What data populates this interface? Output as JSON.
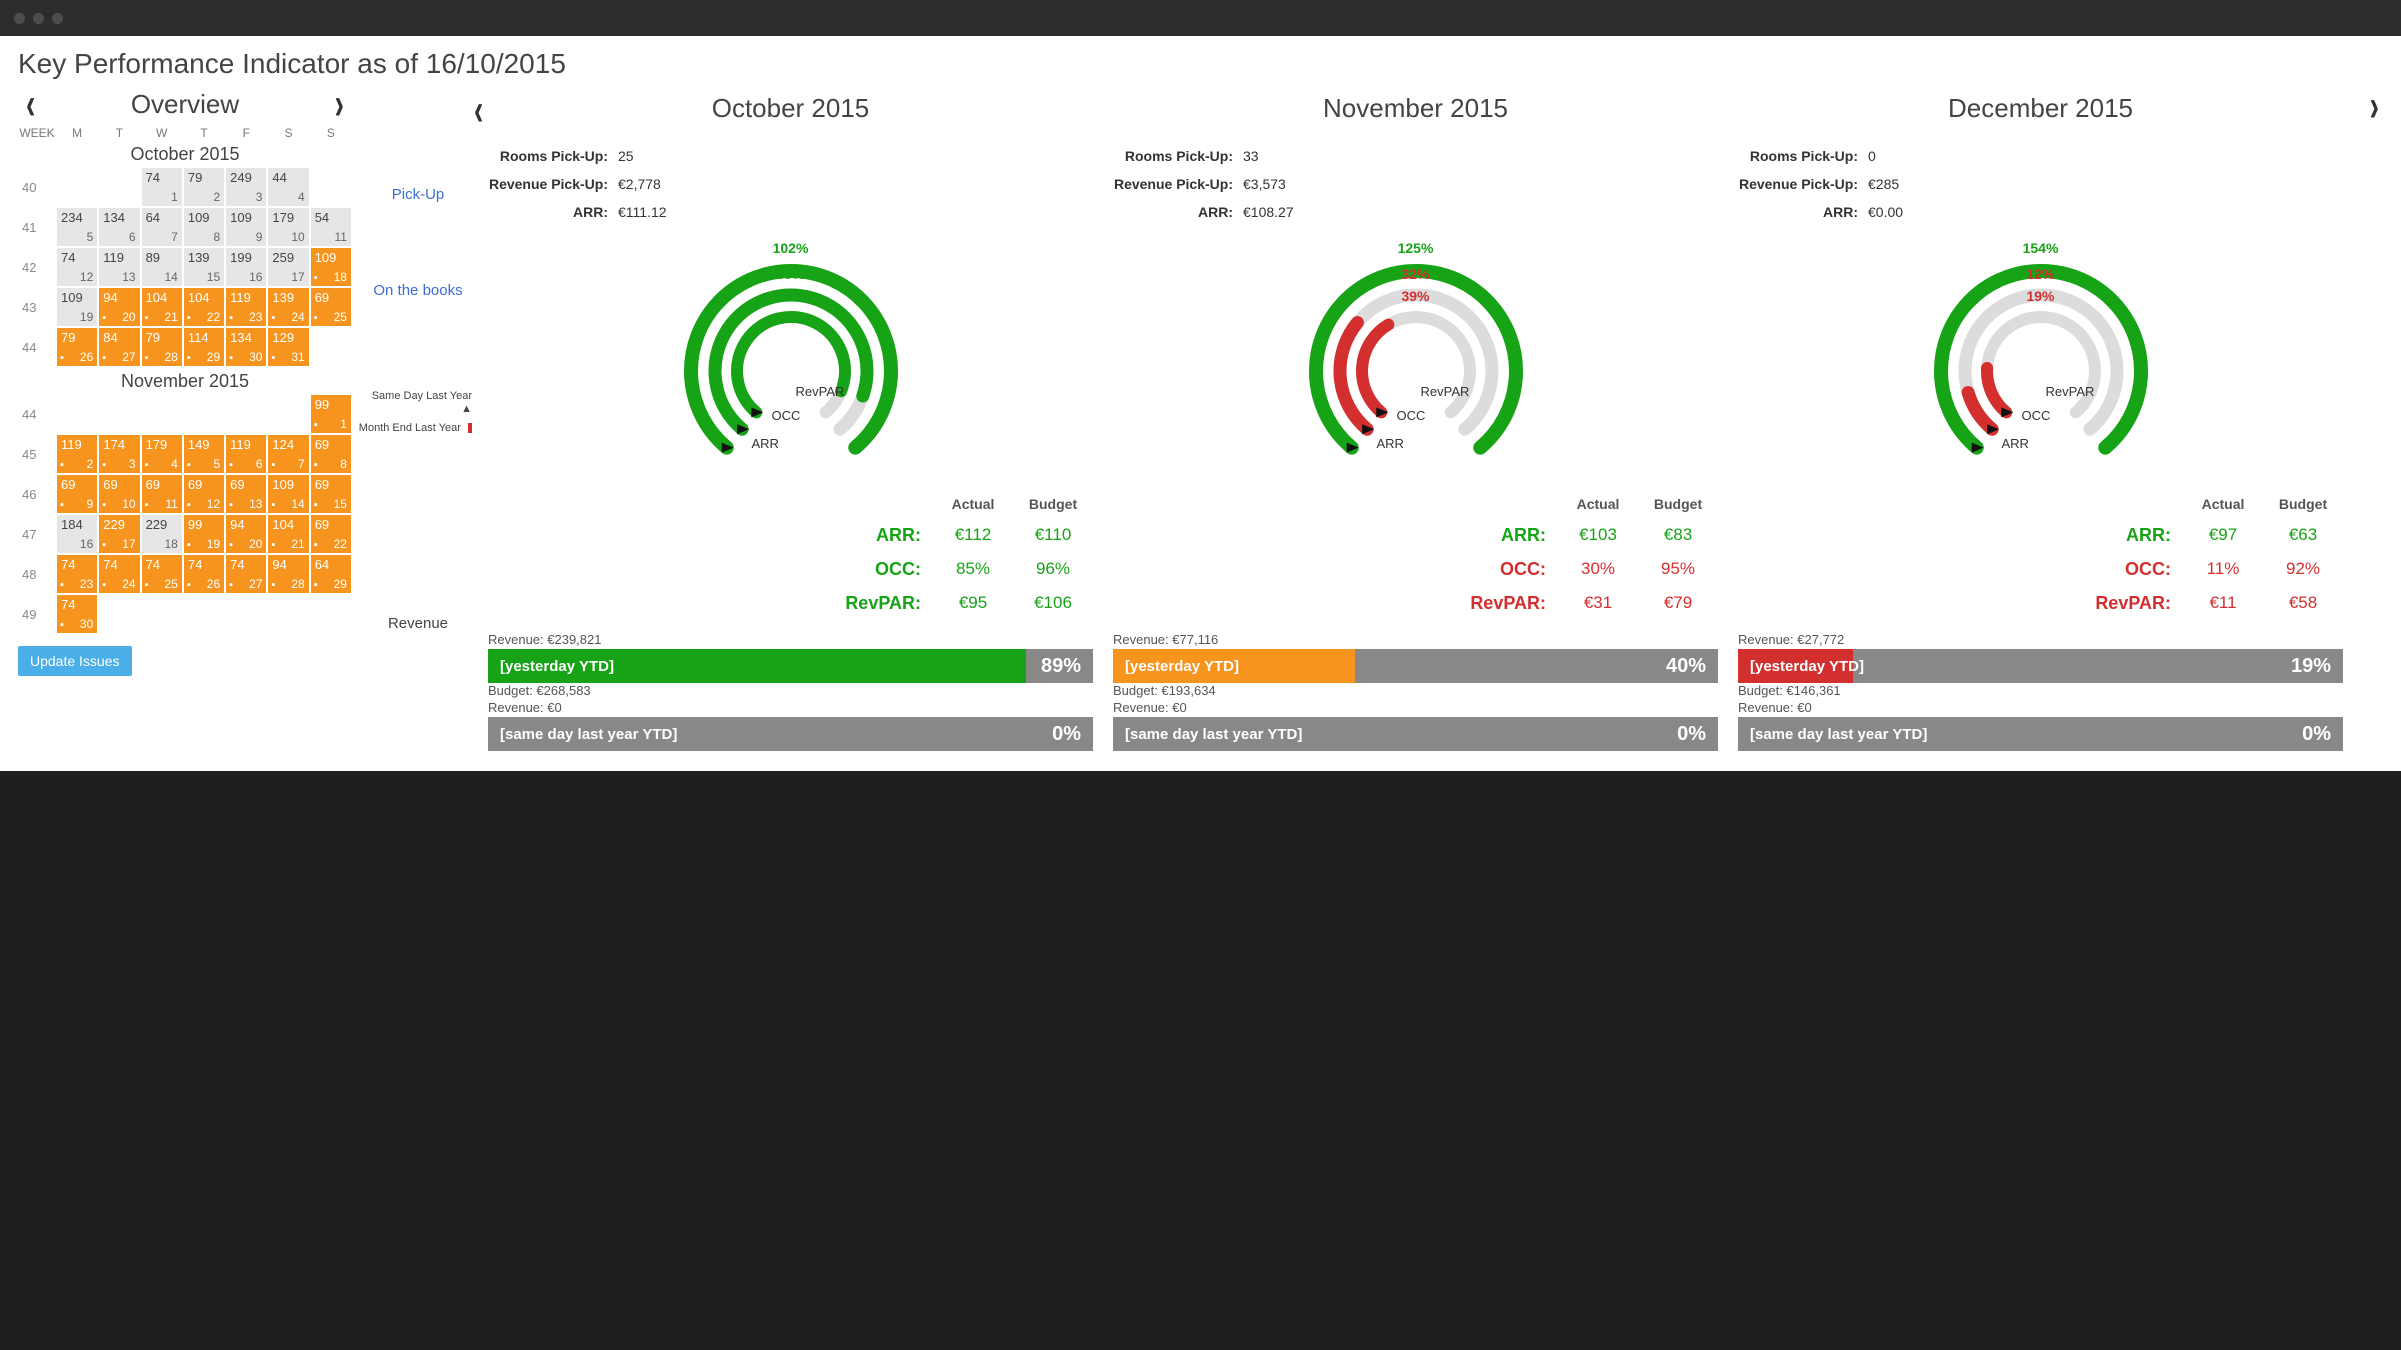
{
  "colors": {
    "green": "#16a316",
    "red": "#d32f2f",
    "orange": "#f7941d",
    "greybar": "#888888",
    "cell_grey": "#e6e6e6",
    "link": "#3a6ed6"
  },
  "page_title": "Key Performance Indicator as of 16/10/2015",
  "overview_title": "Overview",
  "update_issues": "Update Issues",
  "dow_head": [
    "WEEK",
    "M",
    "T",
    "W",
    "T",
    "F",
    "S",
    "S"
  ],
  "row_labels": {
    "pickup": "Pick-Up",
    "on_books": "On the books",
    "revenue": "Revenue"
  },
  "legend": {
    "sdly": "Same Day Last Year",
    "mely": "Month End Last Year"
  },
  "pickup_keys": {
    "rooms": "Rooms Pick-Up:",
    "rev": "Revenue Pick-Up:",
    "arr": "ARR:"
  },
  "ab_headers": {
    "actual": "Actual",
    "budget": "Budget"
  },
  "ab_rows": {
    "arr": "ARR:",
    "occ": "OCC:",
    "revpar": "RevPAR:"
  },
  "gauge_labels": {
    "arr": "ARR",
    "occ": "OCC",
    "revpar": "RevPAR"
  },
  "revbar_label_ytd": "[yesterday YTD]",
  "revbar_label_sdly": "[same day last year YTD]",
  "calendars": [
    {
      "title": "October 2015",
      "weeks": [
        {
          "wk": "40",
          "cells": [
            null,
            null,
            {
              "t": "74",
              "d": "1",
              "s": "grey"
            },
            {
              "t": "79",
              "d": "2",
              "s": "grey"
            },
            {
              "t": "249",
              "d": "3",
              "s": "grey"
            },
            {
              "t": "44",
              "d": "4",
              "s": "grey"
            },
            null
          ]
        },
        {
          "wk": "41",
          "cells": [
            {
              "t": "234",
              "d": "5",
              "s": "grey"
            },
            {
              "t": "134",
              "d": "6",
              "s": "grey"
            },
            {
              "t": "64",
              "d": "7",
              "s": "grey"
            },
            {
              "t": "109",
              "d": "8",
              "s": "grey"
            },
            {
              "t": "109",
              "d": "9",
              "s": "grey"
            },
            {
              "t": "179",
              "d": "10",
              "s": "grey"
            },
            {
              "t": "54",
              "d": "11",
              "s": "grey"
            }
          ]
        },
        {
          "wk": "42",
          "cells": [
            {
              "t": "74",
              "d": "12",
              "s": "grey"
            },
            {
              "t": "119",
              "d": "13",
              "s": "grey"
            },
            {
              "t": "89",
              "d": "14",
              "s": "grey"
            },
            {
              "t": "139",
              "d": "15",
              "s": "grey"
            },
            {
              "t": "199",
              "d": "16",
              "s": "grey"
            },
            {
              "t": "259",
              "d": "17",
              "s": "grey"
            },
            {
              "t": "109",
              "d": "18",
              "s": "orange",
              "n": "▪"
            }
          ]
        },
        {
          "wk": "43",
          "cells": [
            {
              "t": "109",
              "d": "19",
              "s": "grey"
            },
            {
              "t": "94",
              "d": "20",
              "s": "orange",
              "n": "▪"
            },
            {
              "t": "104",
              "d": "21",
              "s": "orange",
              "n": "▪"
            },
            {
              "t": "104",
              "d": "22",
              "s": "orange",
              "n": "▪"
            },
            {
              "t": "119",
              "d": "23",
              "s": "orange",
              "n": "▪"
            },
            {
              "t": "139",
              "d": "24",
              "s": "orange",
              "n": "▪"
            },
            {
              "t": "69",
              "d": "25",
              "s": "orange",
              "n": "▪"
            }
          ]
        },
        {
          "wk": "44",
          "cells": [
            {
              "t": "79",
              "d": "26",
              "s": "orange",
              "n": "▪"
            },
            {
              "t": "84",
              "d": "27",
              "s": "orange",
              "n": "▪"
            },
            {
              "t": "79",
              "d": "28",
              "s": "orange",
              "n": "▪"
            },
            {
              "t": "114",
              "d": "29",
              "s": "orange",
              "n": "▪"
            },
            {
              "t": "134",
              "d": "30",
              "s": "orange",
              "n": "▪"
            },
            {
              "t": "129",
              "d": "31",
              "s": "orange",
              "n": "▪"
            },
            null
          ]
        }
      ]
    },
    {
      "title": "November 2015",
      "weeks": [
        {
          "wk": "44",
          "cells": [
            null,
            null,
            null,
            null,
            null,
            null,
            {
              "t": "99",
              "d": "1",
              "s": "orange",
              "n": "▪"
            }
          ]
        },
        {
          "wk": "45",
          "cells": [
            {
              "t": "119",
              "d": "2",
              "s": "orange",
              "n": "▪"
            },
            {
              "t": "174",
              "d": "3",
              "s": "orange",
              "n": "▪"
            },
            {
              "t": "179",
              "d": "4",
              "s": "orange",
              "n": "▪"
            },
            {
              "t": "149",
              "d": "5",
              "s": "orange",
              "n": "▪"
            },
            {
              "t": "119",
              "d": "6",
              "s": "orange",
              "n": "▪"
            },
            {
              "t": "124",
              "d": "7",
              "s": "orange",
              "n": "▪"
            },
            {
              "t": "69",
              "d": "8",
              "s": "orange",
              "n": "▪"
            }
          ]
        },
        {
          "wk": "46",
          "cells": [
            {
              "t": "69",
              "d": "9",
              "s": "orange",
              "n": "▪"
            },
            {
              "t": "69",
              "d": "10",
              "s": "orange",
              "n": "▪"
            },
            {
              "t": "69",
              "d": "11",
              "s": "orange",
              "n": "▪"
            },
            {
              "t": "69",
              "d": "12",
              "s": "orange",
              "n": "▪"
            },
            {
              "t": "69",
              "d": "13",
              "s": "orange",
              "n": "▪"
            },
            {
              "t": "109",
              "d": "14",
              "s": "orange",
              "n": "▪"
            },
            {
              "t": "69",
              "d": "15",
              "s": "orange",
              "n": "▪"
            }
          ]
        },
        {
          "wk": "47",
          "cells": [
            {
              "t": "184",
              "d": "16",
              "s": "grey"
            },
            {
              "t": "229",
              "d": "17",
              "s": "orange",
              "n": "▪"
            },
            {
              "t": "229",
              "d": "18",
              "s": "grey"
            },
            {
              "t": "99",
              "d": "19",
              "s": "orange",
              "n": "▪"
            },
            {
              "t": "94",
              "d": "20",
              "s": "orange",
              "n": "▪"
            },
            {
              "t": "104",
              "d": "21",
              "s": "orange",
              "n": "▪"
            },
            {
              "t": "69",
              "d": "22",
              "s": "orange",
              "n": "▪"
            }
          ]
        },
        {
          "wk": "48",
          "cells": [
            {
              "t": "74",
              "d": "23",
              "s": "orange",
              "n": "▪"
            },
            {
              "t": "74",
              "d": "24",
              "s": "orange",
              "n": "▪"
            },
            {
              "t": "74",
              "d": "25",
              "s": "orange",
              "n": "▪"
            },
            {
              "t": "74",
              "d": "26",
              "s": "orange",
              "n": "▪"
            },
            {
              "t": "74",
              "d": "27",
              "s": "orange",
              "n": "▪"
            },
            {
              "t": "94",
              "d": "28",
              "s": "orange",
              "n": "▪"
            },
            {
              "t": "64",
              "d": "29",
              "s": "orange",
              "n": "▪"
            }
          ]
        },
        {
          "wk": "49",
          "cells": [
            {
              "t": "74",
              "d": "30",
              "s": "orange",
              "n": "▪"
            },
            null,
            null,
            null,
            null,
            null,
            null
          ]
        }
      ]
    }
  ],
  "months": [
    {
      "title": "October 2015",
      "pickup": {
        "rooms": "25",
        "rev": "€2,778",
        "arr": "€111.12"
      },
      "gauge": {
        "rings": [
          {
            "pct": 102,
            "color": "green"
          },
          {
            "pct": 89,
            "color": "green"
          },
          {
            "pct": 90,
            "color": "green"
          }
        ]
      },
      "actual_budget": {
        "arr": {
          "a": "€112",
          "b": "€110",
          "c": "green"
        },
        "occ": {
          "a": "85%",
          "b": "96%",
          "c": "green"
        },
        "revpar": {
          "a": "€95",
          "b": "€106",
          "c": "green"
        }
      },
      "bars": [
        {
          "top": "Revenue: €239,821",
          "label": "[yesterday YTD]",
          "pct": "89%",
          "fill": 89,
          "color": "#16a316"
        },
        {
          "top": "Budget: €268,583"
        },
        {
          "top": "Revenue: €0",
          "label": "[same day last year YTD]",
          "pct": "0%",
          "fill": 0,
          "color": "#888888"
        }
      ]
    },
    {
      "title": "November 2015",
      "pickup": {
        "rooms": "33",
        "rev": "€3,573",
        "arr": "€108.27"
      },
      "gauge": {
        "rings": [
          {
            "pct": 125,
            "color": "green"
          },
          {
            "pct": 32,
            "color": "red"
          },
          {
            "pct": 39,
            "color": "red"
          }
        ]
      },
      "actual_budget": {
        "arr": {
          "a": "€103",
          "b": "€83",
          "c": "green"
        },
        "occ": {
          "a": "30%",
          "b": "95%",
          "c": "red"
        },
        "revpar": {
          "a": "€31",
          "b": "€79",
          "c": "red"
        }
      },
      "bars": [
        {
          "top": "Revenue: €77,116",
          "label": "[yesterday YTD]",
          "pct": "40%",
          "fill": 40,
          "color": "#f7941d"
        },
        {
          "top": "Budget: €193,634"
        },
        {
          "top": "Revenue: €0",
          "label": "[same day last year YTD]",
          "pct": "0%",
          "fill": 0,
          "color": "#888888"
        }
      ]
    },
    {
      "title": "December 2015",
      "pickup": {
        "rooms": "0",
        "rev": "€285",
        "arr": "€0.00"
      },
      "gauge": {
        "rings": [
          {
            "pct": 154,
            "color": "green"
          },
          {
            "pct": 12,
            "color": "red"
          },
          {
            "pct": 19,
            "color": "red"
          }
        ]
      },
      "actual_budget": {
        "arr": {
          "a": "€97",
          "b": "€63",
          "c": "green"
        },
        "occ": {
          "a": "11%",
          "b": "92%",
          "c": "red"
        },
        "revpar": {
          "a": "€11",
          "b": "€58",
          "c": "red"
        }
      },
      "bars": [
        {
          "top": "Revenue: €27,772",
          "label": "[yesterday YTD]",
          "pct": "19%",
          "fill": 19,
          "color": "#d32f2f"
        },
        {
          "top": "Budget: €146,361"
        },
        {
          "top": "Revenue: €0",
          "label": "[same day last year YTD]",
          "pct": "0%",
          "fill": 0,
          "color": "#888888"
        }
      ]
    }
  ]
}
